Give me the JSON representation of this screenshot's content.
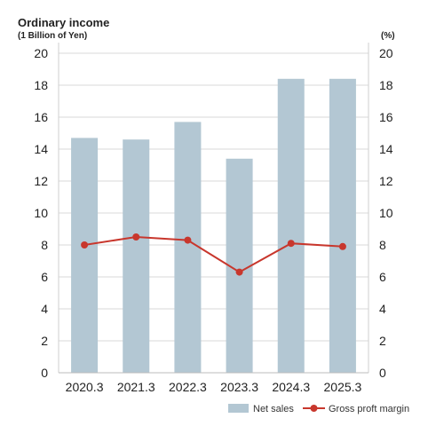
{
  "chart_data": {
    "type": "bar",
    "title": "Ordinary income",
    "subtitle": "(1 Billion of Yen)",
    "right_axis_unit": "(%)",
    "categories": [
      "2020.3",
      "2021.3",
      "2022.3",
      "2023.3",
      "2024.3",
      "2025.3"
    ],
    "series": [
      {
        "name": "Net sales",
        "type": "bar",
        "axis": "left",
        "color": "#b3c7d3",
        "values": [
          14.7,
          14.6,
          15.7,
          13.4,
          18.4,
          18.4
        ]
      },
      {
        "name": "Gross proft margin",
        "type": "line",
        "axis": "right",
        "color": "#c8372d",
        "values": [
          8.0,
          8.5,
          8.3,
          6.3,
          8.1,
          7.9
        ]
      }
    ],
    "ylim": [
      0,
      20
    ],
    "y2lim": [
      0,
      20
    ],
    "yticks": [
      0,
      2,
      4,
      6,
      8,
      10,
      12,
      14,
      16,
      18,
      20
    ],
    "grid": true,
    "legend_position": "bottom-right"
  }
}
